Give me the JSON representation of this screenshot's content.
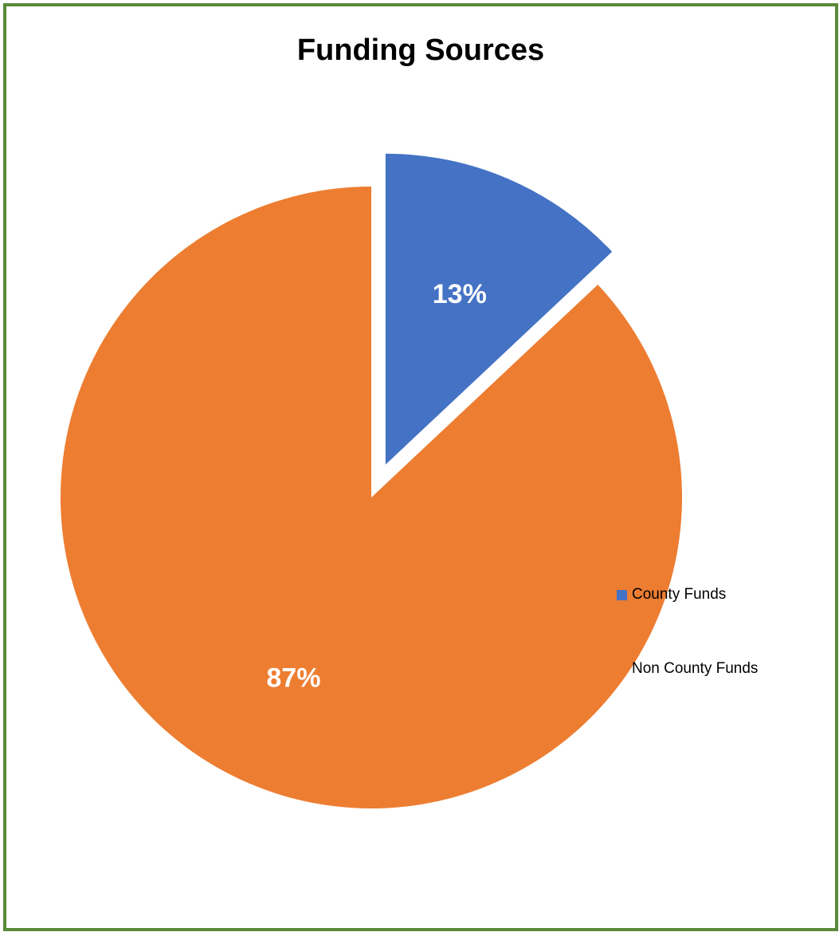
{
  "chart_data": {
    "type": "pie",
    "title": "Funding Sources",
    "slices": [
      {
        "name": "County Funds",
        "value": 13,
        "label": "13%",
        "color": "#4472c4",
        "exploded": true
      },
      {
        "name": "Non County Funds",
        "value": 87,
        "label": "87%",
        "color": "#ed7d31",
        "exploded": false
      }
    ],
    "legend": {
      "placement": "bottom-right",
      "entries": [
        "County Funds",
        "Non County Funds"
      ]
    },
    "border_color": "#5a8a3a"
  }
}
